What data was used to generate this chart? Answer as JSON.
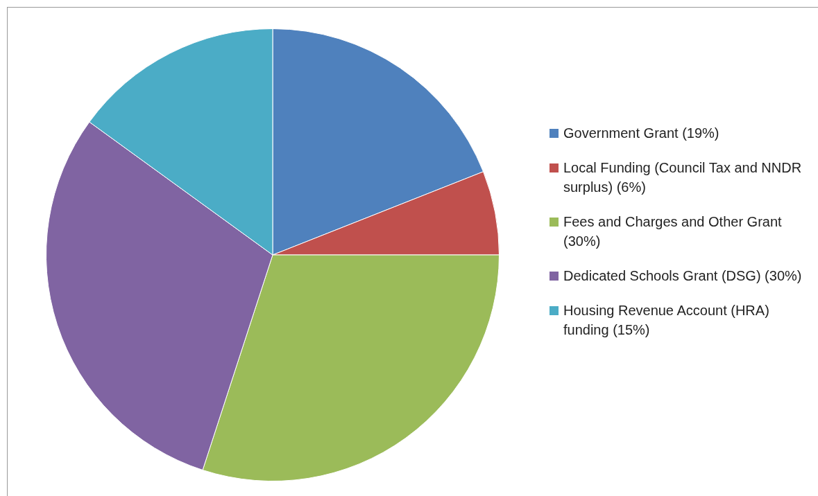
{
  "chart_data": {
    "type": "pie",
    "categories": [
      "Government Grant (19%)",
      "Local Funding (Council Tax and NNDR surplus) (6%)",
      "Fees and Charges and Other Grant (30%)",
      "Dedicated Schools Grant (DSG) (30%)",
      "Housing Revenue Account (HRA) funding (15%)"
    ],
    "values": [
      19,
      6,
      30,
      30,
      15
    ],
    "colors": [
      "#4f81bd",
      "#c0504d",
      "#9bbb59",
      "#8064a2",
      "#4bacc6"
    ],
    "legend": "right"
  }
}
